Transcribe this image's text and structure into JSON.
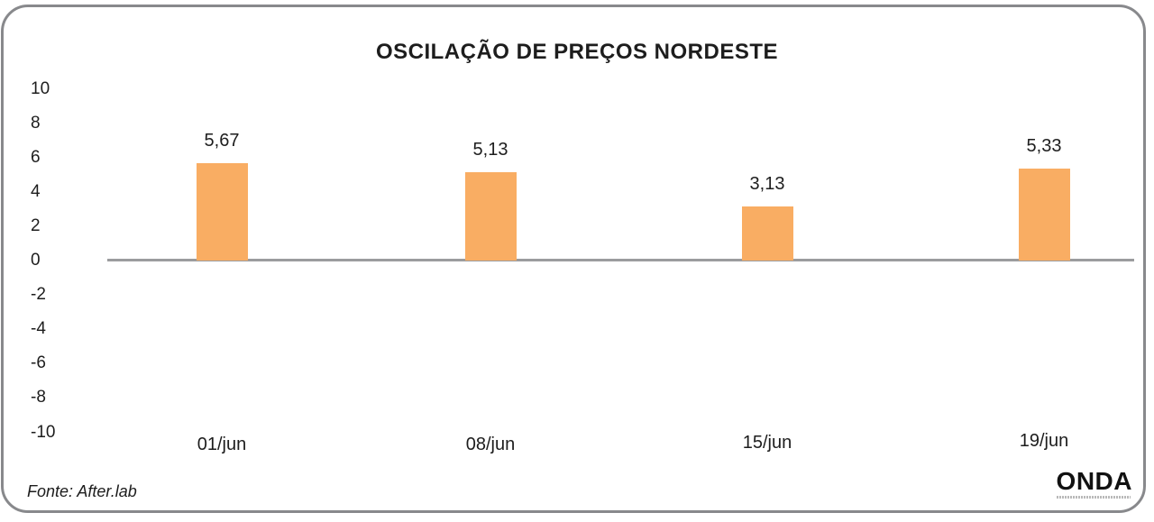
{
  "chart_data": {
    "type": "bar",
    "title": "OSCILAÇÃO DE PREÇOS NORDESTE",
    "categories": [
      "01/jun",
      "08/jun",
      "15/jun",
      "19/jun"
    ],
    "values": [
      5.67,
      5.13,
      3.13,
      5.33
    ],
    "value_labels": [
      "5,67",
      "5,13",
      "3,13",
      "5,33"
    ],
    "y_ticks": [
      10,
      8,
      6,
      4,
      2,
      0,
      -2,
      -4,
      -6,
      -8,
      -10
    ],
    "y_tick_labels": [
      "10",
      "8",
      "6",
      "4",
      "2",
      "0",
      "-2",
      "-4",
      "-6",
      "-8",
      "-10"
    ],
    "ylim": [
      -10,
      10
    ],
    "xlabel": "",
    "ylabel": "",
    "grid": false,
    "legend": false,
    "bar_color": "#f9ad63",
    "axis_line_color": "#9b9c9e",
    "text_color": "#1d1d1d"
  },
  "footer": {
    "source_label": "Fonte: After.lab",
    "logo_text": "ONDA"
  },
  "frame": {
    "border_color": "#88898c",
    "background": "#ffffff"
  }
}
